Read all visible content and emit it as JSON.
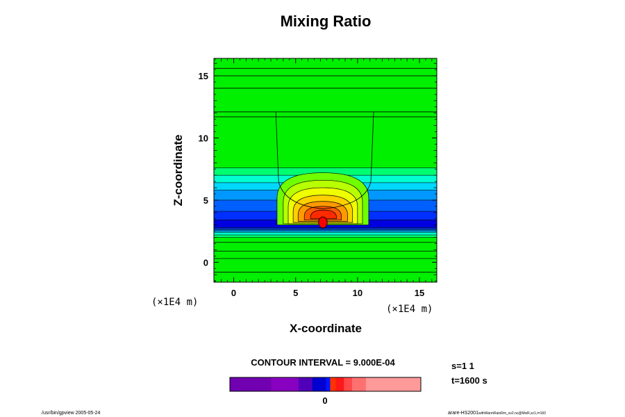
{
  "chart_data": {
    "type": "heatmap",
    "title": "Mixing Ratio",
    "xlabel": "X-coordinate",
    "ylabel": "Z-coordinate",
    "x_unit": "(×1E4 m)",
    "z_unit": "(×1E4 m)",
    "xlim": [
      -1.6,
      16.4
    ],
    "ylim": [
      -1.6,
      16.4
    ],
    "x_ticks": [
      0,
      5,
      10,
      15
    ],
    "y_ticks": [
      0,
      5,
      10,
      15
    ],
    "x_tick_labels": [
      "0",
      "5",
      "10",
      "15"
    ],
    "y_tick_labels": [
      "0",
      "5",
      "10",
      "15"
    ],
    "background_color": "#00f000",
    "contour_interval_text": "CONTOUR INTERVAL = 9.000E-04",
    "colorbar": {
      "label": "0",
      "segments": [
        {
          "color": "#7000b0",
          "weight": 3
        },
        {
          "color": "#8800c0",
          "weight": 2
        },
        {
          "color": "#5000b8",
          "weight": 1
        },
        {
          "color": "#0000d0",
          "weight": 1
        },
        {
          "color": "#0018ff",
          "weight": 0.3
        },
        {
          "color": "#ff3300",
          "weight": 0.4
        },
        {
          "color": "#ff1818",
          "weight": 0.6
        },
        {
          "color": "#ff4848",
          "weight": 0.6
        },
        {
          "color": "#ff7070",
          "weight": 1
        },
        {
          "color": "#ff9a9a",
          "weight": 4
        }
      ]
    },
    "bands": [
      {
        "z0": 2.0,
        "z1": 7.6,
        "color": "#00ff70"
      },
      {
        "z0": 2.2,
        "z1": 7.0,
        "color": "#00ffd0"
      },
      {
        "z0": 2.4,
        "z1": 6.4,
        "color": "#00d8ff"
      },
      {
        "z0": 2.5,
        "z1": 5.8,
        "color": "#0098ff"
      },
      {
        "z0": 2.6,
        "z1": 5.0,
        "color": "#0060ff"
      },
      {
        "z0": 2.7,
        "z1": 4.1,
        "color": "#0030ff"
      },
      {
        "z0": 2.8,
        "z1": 3.4,
        "color": "#0000e0"
      }
    ],
    "plume": [
      {
        "x0": 3.5,
        "x1": 10.9,
        "z0": 3.0,
        "z1": 7.2,
        "color": "#70ff00"
      },
      {
        "x0": 4.0,
        "x1": 10.4,
        "z0": 3.1,
        "z1": 6.6,
        "color": "#b8ff00"
      },
      {
        "x0": 4.4,
        "x1": 10.0,
        "z0": 3.1,
        "z1": 6.0,
        "color": "#f0ff00"
      },
      {
        "x0": 4.8,
        "x1": 9.6,
        "z0": 3.2,
        "z1": 5.4,
        "color": "#ffd000"
      },
      {
        "x0": 5.2,
        "x1": 9.2,
        "z0": 3.3,
        "z1": 4.9,
        "color": "#ff9a00"
      },
      {
        "x0": 5.7,
        "x1": 8.7,
        "z0": 3.4,
        "z1": 4.5,
        "color": "#ff5a00"
      },
      {
        "x0": 6.2,
        "x1": 8.3,
        "z0": 3.5,
        "z1": 4.2,
        "color": "#ff2a00"
      }
    ],
    "core": {
      "x": 7.2,
      "z": 3.2,
      "rx": 0.35,
      "rz": 0.45,
      "color": "#ff0000"
    },
    "horizontal_contours_z": [
      15.6,
      15.0,
      14.0,
      12.1,
      11.7,
      1.6,
      0.9,
      0.3,
      -0.8
    ],
    "column_x": [
      3.4,
      11.3
    ]
  },
  "footer": {
    "s_label": "s=1 1",
    "t_label": "t=1600 s",
    "left_note": "/usr/bin/gpview 2005-05-24",
    "right_note_main": "arare-HS2001",
    "right_note_sub": "withWarmRainRm_sv2.nc@MixR,sc1,t=160"
  }
}
